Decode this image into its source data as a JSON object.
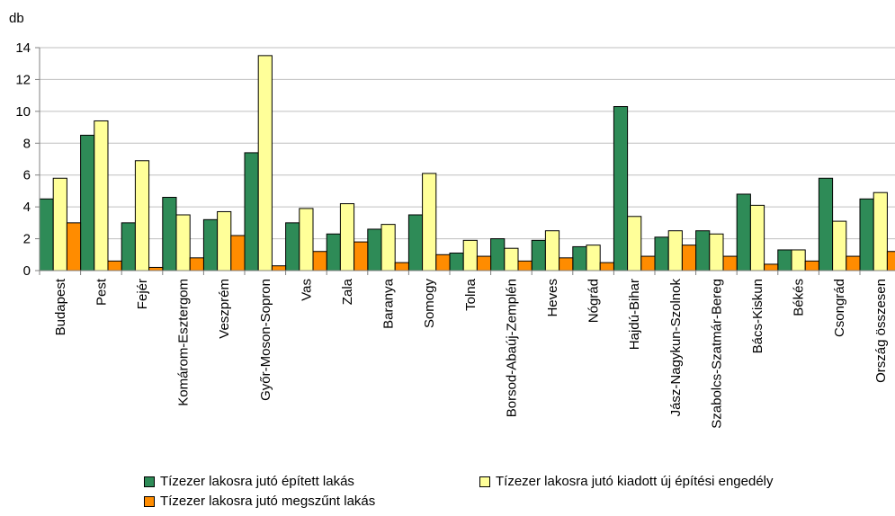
{
  "chart_data": {
    "type": "bar",
    "ylabel": "db",
    "ylim": [
      0,
      14
    ],
    "yticks": [
      "0",
      "2",
      "4",
      "6",
      "8",
      "10",
      "12",
      "14"
    ],
    "grid": true,
    "legend_position": "bottom",
    "categories": [
      "Budapest",
      "Pest",
      "Fejér",
      "Komárom-Esztergom",
      "Veszprém",
      "Győr-Moson-Sopron",
      "Vas",
      "Zala",
      "Baranya",
      "Somogy",
      "Tolna",
      "Borsod-Abaúj-Zemplén",
      "Heves",
      "Nógrád",
      "Hajdú-Bihar",
      "Jász-Nagykun-Szolnok",
      "Szabolcs-Szatmár-Bereg",
      "Bács-Kiskun",
      "Békés",
      "Csongrád",
      "Ország összesen"
    ],
    "series": [
      {
        "name": "Tízezer lakosra jutó épített lakás",
        "color": "#2e8b57",
        "values": [
          4.5,
          8.5,
          3.0,
          4.6,
          3.2,
          7.4,
          3.0,
          2.3,
          2.6,
          3.5,
          1.1,
          2.0,
          1.9,
          1.5,
          10.3,
          2.1,
          2.5,
          4.8,
          1.3,
          5.8,
          4.5
        ]
      },
      {
        "name": "Tízezer lakosra jutó kiadott új építési engedély",
        "color": "#ffff99",
        "values": [
          5.8,
          9.4,
          6.9,
          3.5,
          3.7,
          13.5,
          3.9,
          4.2,
          2.9,
          6.1,
          1.9,
          1.4,
          2.5,
          1.6,
          3.4,
          2.5,
          2.3,
          4.1,
          1.3,
          3.1,
          4.9
        ]
      },
      {
        "name": "Tízezer lakosra jutó megszűnt lakás",
        "color": "#ff8c00",
        "values": [
          3.0,
          0.6,
          0.2,
          0.8,
          2.2,
          0.3,
          1.2,
          1.8,
          0.5,
          1.0,
          0.9,
          0.6,
          0.8,
          0.5,
          0.9,
          1.6,
          0.9,
          0.4,
          0.6,
          0.9,
          1.2
        ]
      }
    ]
  }
}
